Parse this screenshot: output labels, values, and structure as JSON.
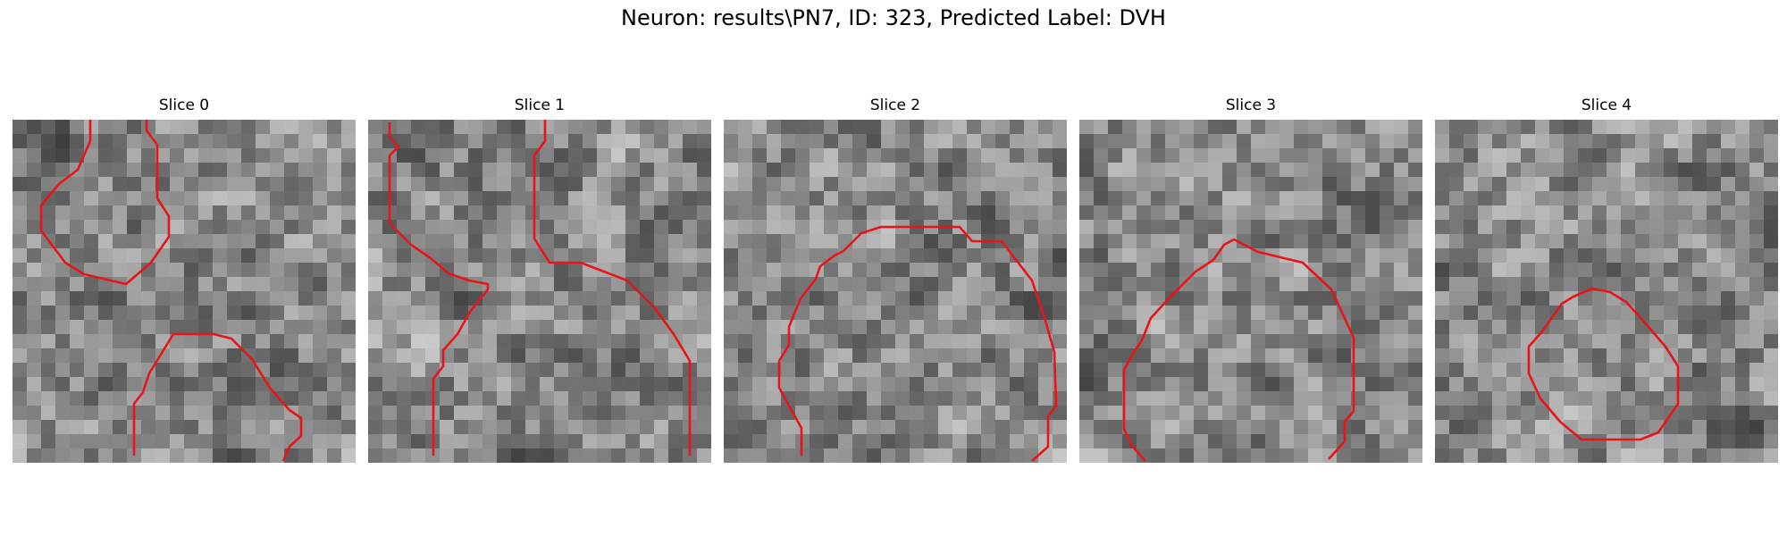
{
  "figure": {
    "title": "Neuron: results\\PN7, ID: 323, Predicted Label: DVH",
    "contour_color": "#e8141a"
  },
  "slices": [
    {
      "title": "Slice 0"
    },
    {
      "title": "Slice 1"
    },
    {
      "title": "Slice 2"
    },
    {
      "title": "Slice 3"
    },
    {
      "title": "Slice 4"
    }
  ]
}
